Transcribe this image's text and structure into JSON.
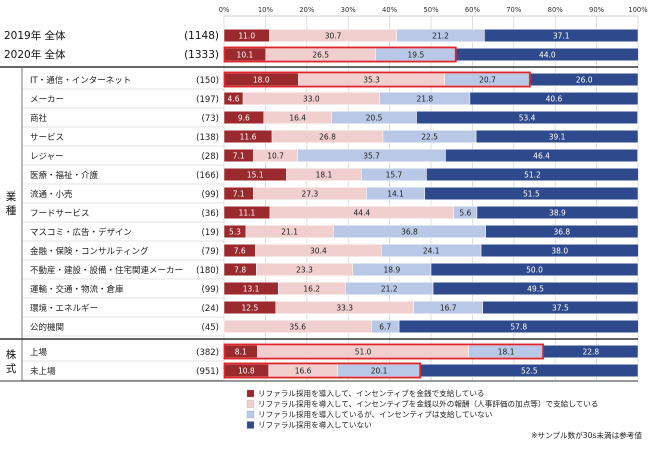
{
  "chart_data": {
    "type": "bar",
    "stacked": "100%",
    "orientation": "horizontal",
    "x_ticks": [
      "0%",
      "10%",
      "20%",
      "30%",
      "40%",
      "50%",
      "60%",
      "70%",
      "80%",
      "90%",
      "100%"
    ],
    "xlim": [
      0,
      100
    ],
    "legend_position": "bottom",
    "series": [
      {
        "name": "リファラル採用を導入して、インセンティブを金銭で支給している",
        "color": "#9b2a2f"
      },
      {
        "name": "リファラル採用を導入して、インセンティブを金銭以外の報酬（人事評価の加点等）で支給している",
        "color": "#f2cfcf"
      },
      {
        "name": "リファラル採用を導入しているが、インセンティブは支給していない",
        "color": "#b8c8e6"
      },
      {
        "name": "リファラル採用を導入していない",
        "color": "#2e4a8c"
      }
    ],
    "rows": [
      {
        "label": "2019年 全体",
        "n": "(1148)",
        "group": "overall",
        "values": [
          11.0,
          30.7,
          21.2,
          37.1
        ],
        "highlight": false
      },
      {
        "label": "2020年 全体",
        "n": "(1333)",
        "group": "overall",
        "values": [
          10.1,
          26.5,
          19.5,
          44.0
        ],
        "highlight": true
      },
      {
        "label": "IT・通信・インターネット",
        "n": "(150)",
        "group": "industry",
        "values": [
          18.0,
          35.3,
          20.7,
          26.0
        ],
        "highlight": true
      },
      {
        "label": "メーカー",
        "n": "(197)",
        "group": "industry",
        "values": [
          4.6,
          33.0,
          21.8,
          40.6
        ],
        "highlight": false
      },
      {
        "label": "商社",
        "n": "(73)",
        "group": "industry",
        "values": [
          9.6,
          16.4,
          20.5,
          53.4
        ],
        "highlight": false
      },
      {
        "label": "サービス",
        "n": "(138)",
        "group": "industry",
        "values": [
          11.6,
          26.8,
          22.5,
          39.1
        ],
        "highlight": false
      },
      {
        "label": "レジャー",
        "n": "(28)",
        "group": "industry",
        "values": [
          7.1,
          10.7,
          35.7,
          46.4
        ],
        "highlight": false
      },
      {
        "label": "医療・福祉・介護",
        "n": "(166)",
        "group": "industry",
        "values": [
          15.1,
          18.1,
          15.7,
          51.2
        ],
        "highlight": false
      },
      {
        "label": "流通・小売",
        "n": "(99)",
        "group": "industry",
        "values": [
          7.1,
          27.3,
          14.1,
          51.5
        ],
        "highlight": false
      },
      {
        "label": "フードサービス",
        "n": "(36)",
        "group": "industry",
        "values": [
          11.1,
          44.4,
          5.6,
          38.9
        ],
        "highlight": false
      },
      {
        "label": "マスコミ・広告・デザイン",
        "n": "(19)",
        "group": "industry",
        "values": [
          5.3,
          21.1,
          36.8,
          36.8
        ],
        "highlight": false
      },
      {
        "label": "金融・保険・コンサルティング",
        "n": "(79)",
        "group": "industry",
        "values": [
          7.6,
          30.4,
          24.1,
          38.0
        ],
        "highlight": false
      },
      {
        "label": "不動産・建設・設備・住宅関連メーカー",
        "n": "(180)",
        "group": "industry",
        "values": [
          7.8,
          23.3,
          18.9,
          50.0
        ],
        "highlight": false
      },
      {
        "label": "運輸・交通・物流・倉庫",
        "n": "(99)",
        "group": "industry",
        "values": [
          13.1,
          16.2,
          21.2,
          49.5
        ],
        "highlight": false
      },
      {
        "label": "環境・エネルギー",
        "n": "(24)",
        "group": "industry",
        "values": [
          12.5,
          33.3,
          16.7,
          37.5
        ],
        "highlight": false
      },
      {
        "label": "公的機関",
        "n": "(45)",
        "group": "industry",
        "values": [
          0,
          35.6,
          6.7,
          57.8
        ],
        "highlight": false
      },
      {
        "label": "上場",
        "n": "(382)",
        "group": "listing",
        "values": [
          8.1,
          51.0,
          18.1,
          22.8
        ],
        "highlight": true
      },
      {
        "label": "未上場",
        "n": "(951)",
        "group": "listing",
        "values": [
          10.8,
          16.6,
          20.1,
          52.5
        ],
        "highlight": true
      }
    ],
    "group_labels": {
      "industry": "業種",
      "listing": "株式"
    },
    "highlight_color": "#e0242b"
  },
  "note": "※サンプル数が30s未満は参考値"
}
